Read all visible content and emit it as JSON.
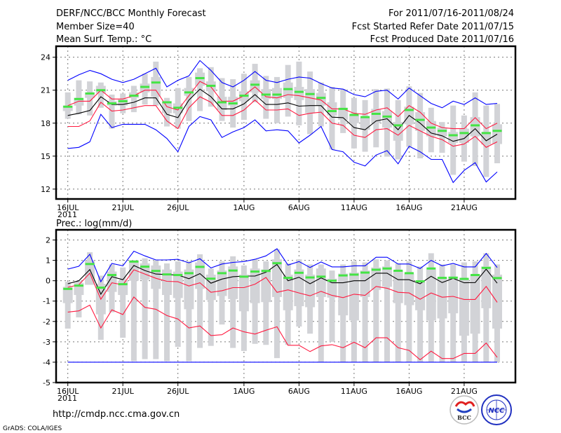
{
  "header": {
    "title": "DERF/NCC/BCC Monthly Forecast",
    "member_size": "Member Size=40",
    "variable": "Mean Surf. Temp.: °C",
    "period": "For 2011/07/16-2011/08/24",
    "started": "Fcst Started Refer Date 2011/07/15",
    "produced": "Fcst Produced Date 2011/07/16"
  },
  "footer": {
    "url": "http://cmdp.ncc.cma.gov.cn",
    "credit": "GrADS: COLA/IGES",
    "logo_bcc": "BCC",
    "logo_ncc": "NCC"
  },
  "colors": {
    "max_min": "#0000ff",
    "spread": "#ff1a40",
    "mean": "#000000",
    "median": "#44e444",
    "box": "#d2d3d7"
  },
  "chart_data": [
    {
      "type": "line",
      "title": "Mean Surf. Temp.: °C",
      "ylabel": "",
      "ylim": [
        11.1,
        25
      ],
      "yticks": [
        12,
        15,
        18,
        21,
        24
      ],
      "xticks": [
        {
          "i": 0,
          "label": "16JUL"
        },
        {
          "i": 5,
          "label": "21JUL"
        },
        {
          "i": 10,
          "label": "26JUL"
        },
        {
          "i": 16,
          "label": "1AUG"
        },
        {
          "i": 21,
          "label": "6AUG"
        },
        {
          "i": 26,
          "label": "11AUG"
        },
        {
          "i": 31,
          "label": "16AUG"
        },
        {
          "i": 36,
          "label": "21AUG"
        }
      ],
      "year_label": "2011",
      "days": 40,
      "series": [
        {
          "name": "max",
          "color": "#0000ff",
          "values": [
            21.9,
            22.4,
            22.8,
            22.5,
            22.0,
            21.7,
            22.0,
            22.5,
            23.0,
            21.3,
            21.9,
            22.3,
            23.7,
            22.8,
            21.7,
            21.3,
            21.9,
            22.7,
            21.9,
            21.7,
            22.0,
            22.2,
            22.1,
            21.6,
            21.2,
            21.1,
            20.6,
            20.4,
            20.9,
            21.0,
            20.2,
            21.2,
            20.5,
            19.8,
            19.4,
            20.0,
            19.7,
            20.3,
            19.7,
            19.8
          ]
        },
        {
          "name": "upper",
          "color": "#ff1a40",
          "values": [
            19.6,
            20.0,
            20.0,
            21.0,
            20.2,
            20.2,
            20.5,
            21.0,
            21.0,
            19.5,
            19.2,
            20.5,
            21.8,
            21.3,
            20.0,
            20.0,
            20.5,
            21.3,
            20.4,
            20.3,
            20.6,
            20.5,
            20.3,
            20.1,
            19.3,
            19.3,
            18.9,
            18.8,
            19.2,
            19.4,
            18.6,
            19.6,
            19.0,
            18.0,
            17.6,
            17.5,
            17.5,
            18.5,
            17.5,
            18.0
          ]
        },
        {
          "name": "mean",
          "color": "#000000",
          "values": [
            18.7,
            18.9,
            19.15,
            20.4,
            19.7,
            19.7,
            19.9,
            20.3,
            20.3,
            18.8,
            18.5,
            20.1,
            21.1,
            20.4,
            19.3,
            19.3,
            19.75,
            20.6,
            19.7,
            19.7,
            19.85,
            19.55,
            19.6,
            19.6,
            18.55,
            18.5,
            17.6,
            17.4,
            18.2,
            18.4,
            17.4,
            18.7,
            18.0,
            17.1,
            16.85,
            16.35,
            16.6,
            17.5,
            16.4,
            17.0
          ]
        },
        {
          "name": "lower",
          "color": "#ff1a40",
          "values": [
            17.7,
            17.7,
            18.2,
            19.9,
            19.1,
            19.2,
            19.4,
            19.6,
            19.6,
            18.2,
            17.5,
            19.4,
            20.4,
            19.9,
            18.7,
            18.7,
            19.2,
            20.1,
            19.2,
            19.2,
            19.3,
            18.7,
            18.9,
            19.0,
            18.0,
            17.8,
            16.9,
            16.7,
            17.4,
            17.5,
            16.9,
            17.8,
            17.3,
            16.8,
            16.5,
            15.9,
            16.1,
            16.8,
            15.8,
            16.3
          ]
        },
        {
          "name": "min",
          "color": "#0000ff",
          "values": [
            15.7,
            15.8,
            16.3,
            18.8,
            17.6,
            17.9,
            17.9,
            17.9,
            17.4,
            16.6,
            15.4,
            17.7,
            18.6,
            18.3,
            16.7,
            17.2,
            17.6,
            18.3,
            17.3,
            17.4,
            17.3,
            16.2,
            16.9,
            17.7,
            15.6,
            15.4,
            14.45,
            14.1,
            15.1,
            15.5,
            14.3,
            15.9,
            15.4,
            14.7,
            14.7,
            12.6,
            13.7,
            14.4,
            12.65,
            13.56
          ]
        }
      ],
      "median": [
        19.5,
        20.2,
        20.7,
        21.0,
        19.8,
        20.0,
        20.5,
        21.3,
        21.7,
        19.9,
        19.4,
        20.8,
        22.1,
        21.4,
        19.9,
        19.8,
        20.5,
        21.5,
        20.6,
        20.6,
        21.1,
        20.85,
        20.65,
        20.3,
        19.1,
        19.3,
        18.75,
        18.55,
        18.85,
        18.6,
        17.8,
        19.2,
        18.3,
        17.6,
        17.3,
        16.9,
        17.1,
        17.8,
        17.1,
        17.3
      ],
      "whisker_lo": [
        18.4,
        18.8,
        18.7,
        19.4,
        17.5,
        18.9,
        19.0,
        19.7,
        19.6,
        17.7,
        17.5,
        18.2,
        19.1,
        19.5,
        18.2,
        17.6,
        18.3,
        19.9,
        18.4,
        18.0,
        18.6,
        17.8,
        17.0,
        17.7,
        15.6,
        17.1,
        15.7,
        15.4,
        15.8,
        14.95,
        14.7,
        15.85,
        14.8,
        15.35,
        15.3,
        13.3,
        14.5,
        14.1,
        13.1,
        14.35
      ],
      "whisker_hi": [
        20.8,
        21.9,
        21.8,
        21.7,
        20.6,
        20.7,
        21.4,
        22.5,
        23.6,
        20.3,
        21.2,
        22.2,
        23.0,
        23.1,
        22.1,
        22.0,
        22.5,
        23.4,
        22.3,
        22.2,
        23.3,
        23.6,
        22.7,
        21.7,
        21.3,
        21.1,
        20.3,
        20.1,
        21.1,
        21.15,
        20.1,
        21.35,
        20.75,
        19.4,
        18.1,
        19.6,
        18.7,
        20.8,
        19.6,
        19.75
      ],
      "box_lo": [
        19.1,
        19.6,
        20.3,
        20.7,
        19.6,
        19.6,
        20.3,
        20.8,
        20.4,
        18.9,
        18.9,
        20.5,
        21.4,
        20.9,
        19.2,
        19.6,
        20.0,
        20.8,
        20.2,
        20.2,
        20.3,
        20.1,
        18.9,
        19.6,
        18.7,
        18.3,
        18.0,
        17.4,
        18.0,
        17.6,
        16.4,
        17.9,
        17.3,
        16.8,
        16.8,
        16.2,
        16.2,
        16.8,
        16.05,
        16.1
      ],
      "box_hi": [
        19.6,
        20.3,
        20.8,
        21.4,
        20.0,
        20.2,
        20.8,
        21.6,
        22.2,
        20.0,
        19.8,
        21.2,
        22.6,
        21.8,
        20.4,
        20.4,
        20.9,
        21.9,
        21.1,
        21.2,
        21.7,
        21.3,
        21.1,
        20.75,
        19.9,
        19.4,
        18.7,
        18.5,
        19.3,
        19.1,
        18.1,
        19.5,
        19.0,
        18.2,
        17.6,
        17.2,
        17.5,
        18.55,
        17.2,
        17.9
      ]
    },
    {
      "type": "line",
      "title": "Prec.: log(mm/d)",
      "ylabel": "",
      "ylim": [
        -5,
        2.5
      ],
      "yticks": [
        -5,
        -4,
        -3,
        -2,
        -1,
        0,
        1,
        2
      ],
      "xticks": [
        {
          "i": 0,
          "label": "16JUL"
        },
        {
          "i": 5,
          "label": "21JUL"
        },
        {
          "i": 10,
          "label": "26JUL"
        },
        {
          "i": 16,
          "label": "1AUG"
        },
        {
          "i": 21,
          "label": "6AUG"
        },
        {
          "i": 26,
          "label": "11AUG"
        },
        {
          "i": 31,
          "label": "16AUG"
        },
        {
          "i": 36,
          "label": "21AUG"
        }
      ],
      "year_label": "2011",
      "days": 40,
      "series": [
        {
          "name": "max",
          "color": "#0000ff",
          "values": [
            0.57,
            0.71,
            1.3,
            -0.05,
            0.85,
            0.73,
            1.45,
            1.22,
            1.02,
            1.02,
            1.05,
            0.88,
            1.08,
            0.63,
            0.82,
            0.9,
            0.94,
            1.05,
            1.22,
            1.57,
            0.77,
            0.94,
            0.65,
            0.92,
            0.68,
            0.68,
            0.73,
            0.73,
            1.15,
            1.15,
            0.82,
            0.82,
            0.6,
            1.0,
            0.73,
            0.85,
            0.68,
            0.68,
            1.34,
            0.65
          ]
        },
        {
          "name": "upper",
          "color": "#ff1a40",
          "values": [
            -0.32,
            -0.2,
            0.37,
            -0.91,
            -0.1,
            -0.2,
            0.54,
            0.33,
            0.12,
            -0.03,
            -0.05,
            -0.26,
            -0.1,
            -0.57,
            -0.49,
            -0.34,
            -0.34,
            -0.17,
            0.16,
            -0.57,
            -0.45,
            -0.6,
            -0.74,
            -0.52,
            -0.72,
            -0.83,
            -0.66,
            -0.72,
            -0.28,
            -0.37,
            -0.57,
            -0.6,
            -0.91,
            -0.6,
            -0.81,
            -0.77,
            -0.92,
            -0.92,
            -0.28,
            -1.06
          ]
        },
        {
          "name": "mean",
          "color": "#000000",
          "values": [
            -0.15,
            0.0,
            0.55,
            -0.66,
            0.2,
            0.05,
            0.75,
            0.5,
            0.33,
            0.3,
            0.28,
            0.1,
            0.35,
            -0.12,
            0.08,
            0.2,
            0.23,
            0.23,
            0.42,
            0.8,
            0.0,
            0.17,
            -0.15,
            0.14,
            -0.1,
            -0.1,
            0.0,
            0.0,
            0.37,
            0.37,
            0.05,
            0.05,
            -0.15,
            0.22,
            -0.09,
            0.12,
            -0.1,
            -0.09,
            0.57,
            -0.12
          ]
        },
        {
          "name": "lower",
          "color": "#ff1a40",
          "values": [
            -1.54,
            -1.48,
            -1.2,
            -2.32,
            -1.43,
            -1.66,
            -0.8,
            -1.31,
            -1.4,
            -1.71,
            -1.88,
            -2.32,
            -2.22,
            -2.69,
            -2.65,
            -2.32,
            -2.51,
            -2.62,
            -2.43,
            -2.26,
            -3.17,
            -3.17,
            -3.48,
            -3.2,
            -3.14,
            -3.29,
            -3.02,
            -3.29,
            -2.8,
            -2.8,
            -3.29,
            -3.42,
            -3.88,
            -3.46,
            -3.82,
            -3.82,
            -3.57,
            -3.57,
            -3.06,
            -3.76
          ]
        },
        {
          "name": "min",
          "color": "#0000ff",
          "values": [
            -4,
            -4,
            -4,
            -4,
            -4,
            -4,
            -4,
            -4,
            -4,
            -4,
            -4,
            -4,
            -4,
            -4,
            -4,
            -4,
            -4,
            -4,
            -4,
            -4,
            -4,
            -4,
            -4,
            -4,
            -4,
            -4,
            -4,
            -4,
            -4,
            -4,
            -4,
            -4,
            -4,
            -4,
            -4,
            -4,
            -4,
            -4,
            -4,
            -4
          ]
        }
      ],
      "median": [
        -0.4,
        -0.24,
        0.82,
        -0.34,
        0.28,
        -0.17,
        0.94,
        0.69,
        0.48,
        0.31,
        0.28,
        0.37,
        0.68,
        0.1,
        0.37,
        0.5,
        0.2,
        0.45,
        0.48,
        0.86,
        0.14,
        0.39,
        0.16,
        0.2,
        0.0,
        0.26,
        0.3,
        0.4,
        0.54,
        0.6,
        0.49,
        0.37,
        -0.03,
        0.6,
        0.14,
        0.15,
        0.09,
        0.28,
        0.63,
        0.13
      ],
      "whisker_lo": [
        -2.35,
        -1.8,
        -0.2,
        -2.9,
        -1.55,
        -2.8,
        -3.95,
        -3.85,
        -3.85,
        -3.95,
        -3.25,
        -3.95,
        -3.3,
        -3.2,
        -2.15,
        -3.3,
        -3.45,
        -3.1,
        -3.15,
        -3.8,
        -3.15,
        -2.25,
        -2.6,
        -4,
        -3.0,
        -4,
        -4,
        -4,
        -4,
        -4,
        -4,
        -4,
        -4,
        -4,
        -4,
        -4,
        -4,
        -4,
        -4,
        -4
      ],
      "whisker_hi": [
        -0.05,
        0.0,
        1.4,
        0.25,
        0.8,
        0.65,
        1.0,
        1.1,
        1.0,
        0.85,
        0.95,
        0.95,
        1.3,
        0.6,
        0.95,
        1.2,
        0.75,
        1.05,
        0.95,
        1.55,
        0.85,
        1.05,
        0.8,
        0.8,
        0.5,
        0.8,
        0.95,
        0.9,
        1.05,
        1.0,
        0.85,
        0.95,
        0.7,
        1.35,
        0.8,
        0.8,
        0.9,
        0.95,
        1.35,
        0.8
      ],
      "box_lo": [
        -1.1,
        -0.7,
        -0.2,
        -1.65,
        -0.55,
        -0.7,
        0.0,
        0.05,
        -0.4,
        -0.7,
        -0.85,
        -1.4,
        -0.4,
        -0.95,
        -0.75,
        -0.9,
        -1.5,
        -1.1,
        -1.05,
        -0.8,
        -1.45,
        -1.25,
        -1.3,
        -0.8,
        -0.83,
        -1.7,
        -1.95,
        -0.8,
        -0.45,
        -0.3,
        -1.1,
        -1.2,
        -1.45,
        -1.95,
        -1.85,
        -1.6,
        -2.7,
        -2.6,
        -1.35,
        -2.35
      ],
      "box_hi": [
        -0.3,
        -0.1,
        1.0,
        -0.15,
        0.45,
        0.0,
        1.0,
        0.85,
        0.75,
        0.55,
        0.45,
        0.55,
        0.9,
        0.3,
        0.5,
        0.7,
        0.3,
        0.6,
        0.55,
        1.05,
        0.3,
        0.55,
        0.3,
        0.6,
        0.1,
        0.35,
        0.4,
        0.5,
        0.65,
        0.7,
        0.5,
        0.35,
        -0.05,
        0.55,
        0.15,
        0.2,
        0.1,
        0.3,
        0.7,
        0.3
      ]
    }
  ]
}
